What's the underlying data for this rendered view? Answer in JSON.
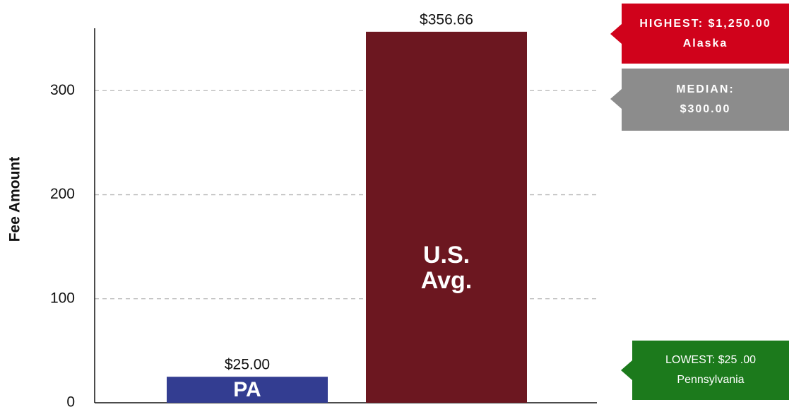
{
  "chart_data": {
    "type": "bar",
    "y_label": "Fee Amount",
    "categories": [
      "PA",
      "U.S. Avg."
    ],
    "values": [
      25,
      356.66
    ],
    "value_labels": [
      "$25.00",
      "$356.66"
    ],
    "colors": [
      "#333d91",
      "#6c1720"
    ],
    "ylim": [
      0,
      360
    ],
    "yticks": [
      0,
      100,
      200,
      300
    ],
    "grid": true,
    "annotations": [
      {
        "lines": [
          "HIGHEST: $1,250.00",
          "Alaska"
        ],
        "color": "#d0021b"
      },
      {
        "lines": [
          "MEDIAN:",
          "$300.00"
        ],
        "color": "#8c8c8c"
      },
      {
        "lines": [
          "LOWEST: $25 .00",
          "Pennsylvania"
        ],
        "color": "#1c7a1c"
      }
    ]
  }
}
